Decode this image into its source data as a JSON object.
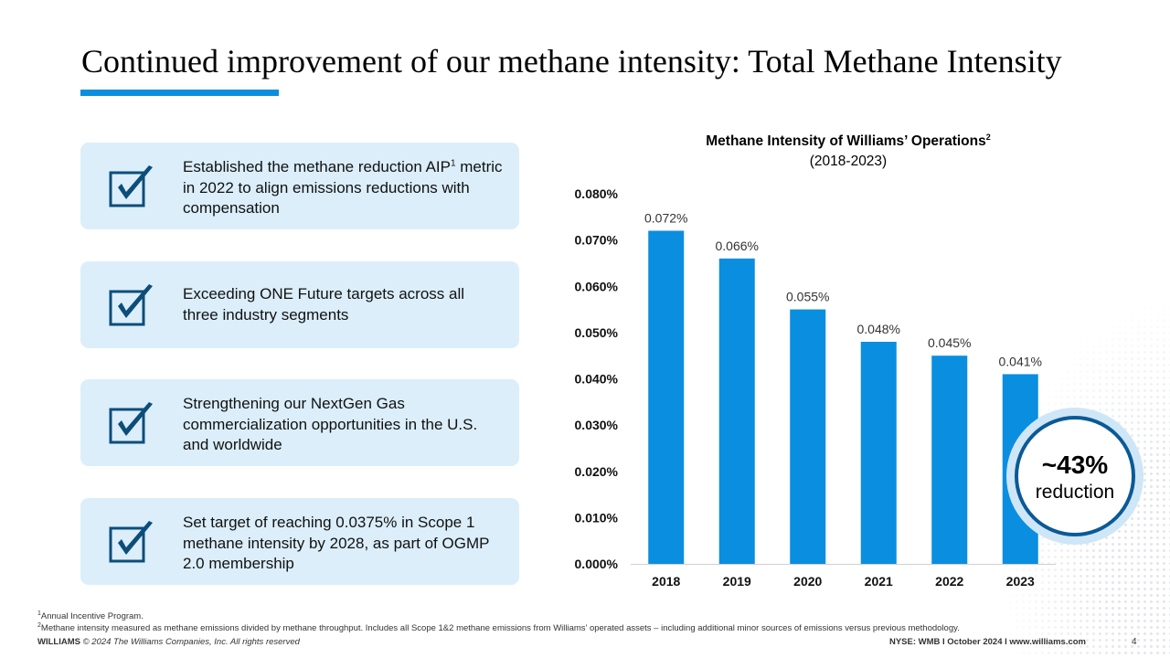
{
  "title": "Continued improvement of our methane intensity: Total Methane Intensity",
  "colors": {
    "accent": "#0a8ee0",
    "bar": "#0a8ee0",
    "card_bg": "#dbeefa",
    "check": "#0d4d7a",
    "badge_ring": "#0a5a96"
  },
  "cards": [
    {
      "icon": "checkbox-check-icon",
      "text": "Established the methane reduction AIP",
      "sup": "1",
      "text2": " metric in 2022 to align emissions reductions with compensation"
    },
    {
      "icon": "checkbox-check-icon",
      "text": "Exceeding ONE Future targets across all three industry segments",
      "sup": "",
      "text2": ""
    },
    {
      "icon": "checkbox-check-icon",
      "text": "Strengthening our NextGen Gas commercialization opportunities in the U.S. and worldwide",
      "sup": "",
      "text2": ""
    },
    {
      "icon": "checkbox-check-icon",
      "text": "Set target of reaching 0.0375% in Scope 1 methane intensity by 2028, as part of OGMP 2.0 membership",
      "sup": "",
      "text2": ""
    }
  ],
  "chart_data": {
    "type": "bar",
    "title": "Methane Intensity of Williams’ Operations",
    "title_sup": "2",
    "subtitle": "(2018-2023)",
    "categories": [
      "2018",
      "2019",
      "2020",
      "2021",
      "2022",
      "2023"
    ],
    "values": [
      0.072,
      0.066,
      0.055,
      0.048,
      0.045,
      0.041
    ],
    "data_labels": [
      "0.072%",
      "0.066%",
      "0.055%",
      "0.048%",
      "0.045%",
      "0.041%"
    ],
    "y_ticks": [
      "0.000%",
      "0.010%",
      "0.020%",
      "0.030%",
      "0.040%",
      "0.050%",
      "0.060%",
      "0.070%",
      "0.080%"
    ],
    "ylim": [
      0,
      0.08
    ],
    "grid": false,
    "xlabel": "",
    "ylabel": ""
  },
  "badge": {
    "value": "~43%",
    "label": "reduction"
  },
  "footnotes": [
    {
      "sup": "1",
      "text": "Annual Incentive Program."
    },
    {
      "sup": "2",
      "text": "Methane intensity measured as methane emissions divided by methane throughput. Includes all Scope 1&2 methane emissions from Williams’ operated assets – including additional minor sources of emissions versus previous methodology."
    }
  ],
  "footer": {
    "brand": "WILLIAMS",
    "copyright": "© 2024 The Williams Companies, Inc. All rights reserved",
    "right": "NYSE: WMB  I  October 2024  I  www.williams.com",
    "page": "4"
  }
}
